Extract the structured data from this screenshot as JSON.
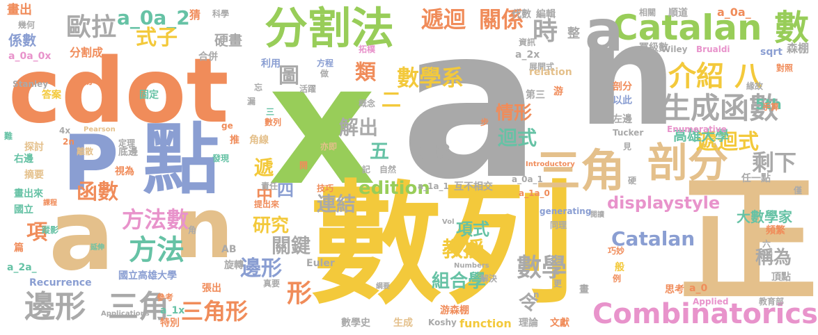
{
  "colors": {
    "orange": "#F08C5A",
    "green": "#98CD59",
    "gray": "#A9A9A9",
    "blue": "#8A9ED2",
    "yellow": "#F3C93B",
    "tan": "#E4C08B",
    "pink": "#E893CB",
    "teal": "#66C2A5"
  },
  "words": [
    {
      "text": "a",
      "color": "gray"
    },
    {
      "text": "n",
      "color": "gray"
    },
    {
      "text": "x",
      "color": "green"
    },
    {
      "text": "cdot",
      "color": "orange"
    },
    {
      "text": "數列",
      "color": "yellow"
    },
    {
      "text": "正",
      "color": "tan"
    },
    {
      "text": "點",
      "color": "blue"
    },
    {
      "text": "P",
      "color": "blue"
    },
    {
      "text": "a",
      "color": "tan"
    },
    {
      "text": "n",
      "color": "tan"
    },
    {
      "text": "分割法",
      "color": "green"
    },
    {
      "text": "Catalan 數",
      "color": "green"
    },
    {
      "text": "a",
      "color": "gray"
    },
    {
      "text": "三角",
      "color": "tan"
    },
    {
      "text": "剖分",
      "color": "tan"
    },
    {
      "text": "生成函數",
      "color": "gray"
    },
    {
      "text": "遞迴式",
      "color": "yellow"
    },
    {
      "text": "迴式",
      "color": "teal"
    },
    {
      "text": "介紹",
      "color": "yellow"
    },
    {
      "text": "八",
      "color": "yellow"
    },
    {
      "text": "遞迴",
      "color": "orange"
    },
    {
      "text": "關係",
      "color": "orange"
    },
    {
      "text": "歐拉",
      "color": "gray"
    },
    {
      "text": "a_0a_2",
      "color": "teal"
    },
    {
      "text": "式子",
      "color": "yellow"
    },
    {
      "text": "時",
      "color": "gray"
    },
    {
      "text": "數學系",
      "color": "yellow"
    },
    {
      "text": "二",
      "color": "yellow"
    },
    {
      "text": "類",
      "color": "orange"
    },
    {
      "text": "圖",
      "color": "gray"
    },
    {
      "text": "情形",
      "color": "orange"
    },
    {
      "text": "5th",
      "color": "teal"
    },
    {
      "text": "解出",
      "color": "gray"
    },
    {
      "text": "五",
      "color": "teal"
    },
    {
      "text": "領域",
      "color": "gray"
    },
    {
      "text": "高雄大學",
      "color": "teal"
    },
    {
      "text": "剩下",
      "color": "gray"
    },
    {
      "text": "edition",
      "color": "green"
    },
    {
      "text": "四",
      "color": "blue"
    },
    {
      "text": "連結",
      "color": "gray"
    },
    {
      "text": "displaystyle",
      "color": "pink"
    },
    {
      "text": "Catalan",
      "color": "blue"
    },
    {
      "text": "Combinatorics",
      "color": "pink"
    },
    {
      "text": "函數",
      "color": "orange"
    },
    {
      "text": "項",
      "color": "orange"
    },
    {
      "text": "方法數",
      "color": "pink"
    },
    {
      "text": "方法",
      "color": "teal"
    },
    {
      "text": "研究",
      "color": "yellow"
    },
    {
      "text": "關鍵",
      "color": "gray"
    },
    {
      "text": "教授",
      "color": "yellow"
    },
    {
      "text": "項式",
      "color": "teal"
    },
    {
      "text": "邊形",
      "color": "blue"
    },
    {
      "text": "形",
      "color": "orange"
    },
    {
      "text": "數學",
      "color": "gray"
    },
    {
      "text": "組合學",
      "color": "teal"
    },
    {
      "text": "邊形",
      "color": "gray"
    },
    {
      "text": "三角",
      "color": "gray"
    },
    {
      "text": "三角形",
      "color": "orange"
    },
    {
      "text": "令",
      "color": "gray"
    },
    {
      "text": "稱為",
      "color": "gray"
    },
    {
      "text": "大數學家",
      "color": "teal"
    },
    {
      "text": "遞",
      "color": "yellow"
    },
    {
      "text": "中",
      "color": "orange"
    },
    {
      "text": "畫出",
      "color": "orange"
    },
    {
      "text": "幾何",
      "color": "gray"
    },
    {
      "text": "係數",
      "color": "blue"
    },
    {
      "text": "a_0a_0x",
      "color": "pink"
    },
    {
      "text": "分割成",
      "color": "orange"
    },
    {
      "text": "猜",
      "color": "orange"
    },
    {
      "text": "科學",
      "color": "gray"
    },
    {
      "text": "硬畫",
      "color": "gray"
    },
    {
      "text": "合併",
      "color": "gray"
    },
    {
      "text": "代數",
      "color": "gray"
    },
    {
      "text": "編輯",
      "color": "gray"
    },
    {
      "text": "相關",
      "color": "gray"
    },
    {
      "text": "順道",
      "color": "gray"
    },
    {
      "text": "a_0a_",
      "color": "orange"
    },
    {
      "text": "整",
      "color": "gray"
    },
    {
      "text": "資訊",
      "color": "gray"
    },
    {
      "text": "a_2x",
      "color": "gray"
    },
    {
      "text": "展開式",
      "color": "gray"
    },
    {
      "text": "冪級數",
      "color": "gray"
    },
    {
      "text": "Wiley",
      "color": "gray"
    },
    {
      "text": "Brualdi",
      "color": "pink"
    },
    {
      "text": "sqrt",
      "color": "blue"
    },
    {
      "text": "森棚",
      "color": "gray"
    },
    {
      "text": "對照",
      "color": "orange"
    },
    {
      "text": "利用",
      "color": "blue"
    },
    {
      "text": "方程",
      "color": "blue"
    },
    {
      "text": "拓樸",
      "color": "pink"
    },
    {
      "text": "relation",
      "color": "tan"
    },
    {
      "text": "Stanley",
      "color": "gray"
    },
    {
      "text": "泰勒",
      "color": "orange"
    },
    {
      "text": "答案",
      "color": "yellow"
    },
    {
      "text": "固定",
      "color": "teal"
    },
    {
      "text": "忘",
      "color": "gray"
    },
    {
      "text": "活躍",
      "color": "gray"
    },
    {
      "text": "做",
      "color": "gray"
    },
    {
      "text": "概念",
      "color": "gray"
    },
    {
      "text": "第三",
      "color": "gray"
    },
    {
      "text": "游",
      "color": "orange"
    },
    {
      "text": "剖分",
      "color": "orange"
    },
    {
      "text": "以此",
      "color": "blue"
    },
    {
      "text": "緣故",
      "color": "gray"
    },
    {
      "text": "手算",
      "color": "orange"
    },
    {
      "text": "漏",
      "color": "gray"
    },
    {
      "text": "三",
      "color": "teal"
    },
    {
      "text": "數列",
      "color": "orange"
    },
    {
      "text": "4x",
      "color": "gray"
    },
    {
      "text": "Pearson",
      "color": "tan"
    },
    {
      "text": "ge",
      "color": "orange"
    },
    {
      "text": "步",
      "color": "orange"
    },
    {
      "text": "左邊",
      "color": "gray"
    },
    {
      "text": "Tucker",
      "color": "gray"
    },
    {
      "text": "Enumerative",
      "color": "pink"
    },
    {
      "text": "難",
      "color": "teal"
    },
    {
      "text": "探討",
      "color": "tan"
    },
    {
      "text": "2n",
      "color": "orange"
    },
    {
      "text": "定理",
      "color": "gray"
    },
    {
      "text": "底邊",
      "color": "gray"
    },
    {
      "text": "推",
      "color": "orange"
    },
    {
      "text": "角線",
      "color": "tan"
    },
    {
      "text": "亦即",
      "color": "tan"
    },
    {
      "text": "見",
      "color": "gray"
    },
    {
      "text": "離散",
      "color": "tan"
    },
    {
      "text": "右邊",
      "color": "teal"
    },
    {
      "text": "視為",
      "color": "orange"
    },
    {
      "text": "發現",
      "color": "teal"
    },
    {
      "text": "摘要",
      "color": "tan"
    },
    {
      "text": "記",
      "color": "gray"
    },
    {
      "text": "自然",
      "color": "gray"
    },
    {
      "text": "開",
      "color": "orange"
    },
    {
      "text": "Introductory",
      "color": "orange"
    },
    {
      "text": "任一點",
      "color": "gray"
    },
    {
      "text": "畫出來",
      "color": "teal"
    },
    {
      "text": "責任",
      "color": "gray"
    },
    {
      "text": "技巧",
      "color": "orange"
    },
    {
      "text": "a_1a_1",
      "color": "gray"
    },
    {
      "text": "互不相交",
      "color": "gray"
    },
    {
      "text": "a_0a_1",
      "color": "gray"
    },
    {
      "text": "硬",
      "color": "gray"
    },
    {
      "text": "僅",
      "color": "gray"
    },
    {
      "text": "國立",
      "color": "teal"
    },
    {
      "text": "課程",
      "color": "orange"
    },
    {
      "text": "提出來",
      "color": "orange"
    },
    {
      "text": "a_1a_0",
      "color": "orange"
    },
    {
      "text": "generating",
      "color": "blue"
    },
    {
      "text": "閱讀",
      "color": "gray"
    },
    {
      "text": "蹤影",
      "color": "teal"
    },
    {
      "text": "角",
      "color": "gray"
    },
    {
      "text": "Vol",
      "color": "gray"
    },
    {
      "text": "同理",
      "color": "gray"
    },
    {
      "text": "頻繁",
      "color": "orange"
    },
    {
      "text": "篇",
      "color": "orange"
    },
    {
      "text": "延伸",
      "color": "teal"
    },
    {
      "text": "AB",
      "color": "gray"
    },
    {
      "text": "六",
      "color": "gray"
    },
    {
      "text": "高中",
      "color": "gray"
    },
    {
      "text": "a_2a_",
      "color": "teal"
    },
    {
      "text": "旋轉",
      "color": "gray"
    },
    {
      "text": "Euler",
      "color": "gray"
    },
    {
      "text": "巧妙",
      "color": "orange"
    },
    {
      "text": "般",
      "color": "yellow"
    },
    {
      "text": "Numbers",
      "color": "gray"
    },
    {
      "text": "Recurrence",
      "color": "blue"
    },
    {
      "text": "國立高雄大學",
      "color": "blue"
    },
    {
      "text": "解決",
      "color": "gray"
    },
    {
      "text": "例",
      "color": "orange"
    },
    {
      "text": "頂點",
      "color": "gray"
    },
    {
      "text": "張出",
      "color": "orange"
    },
    {
      "text": "真要",
      "color": "gray"
    },
    {
      "text": "C",
      "color": "gray"
    },
    {
      "text": "更",
      "color": "gray"
    },
    {
      "text": "參考",
      "color": "orange"
    },
    {
      "text": "綱要",
      "color": "gray"
    },
    {
      "text": "畫",
      "color": "gray"
    },
    {
      "text": "思考",
      "color": "orange"
    },
    {
      "text": "a_0",
      "color": "orange"
    },
    {
      "text": "a_1x",
      "color": "teal"
    },
    {
      "text": "_n",
      "color": "gray"
    },
    {
      "text": "Applications",
      "color": "gray"
    },
    {
      "text": "特別",
      "color": "orange"
    },
    {
      "text": "游森棚",
      "color": "orange"
    },
    {
      "text": "Applied",
      "color": "pink"
    },
    {
      "text": "教育部",
      "color": "gray"
    },
    {
      "text": "數學史",
      "color": "gray"
    },
    {
      "text": "生成",
      "color": "tan"
    },
    {
      "text": "Koshy",
      "color": "gray"
    },
    {
      "text": "function",
      "color": "yellow"
    },
    {
      "text": "理論",
      "color": "gray"
    },
    {
      "text": "文獻",
      "color": "orange"
    }
  ]
}
